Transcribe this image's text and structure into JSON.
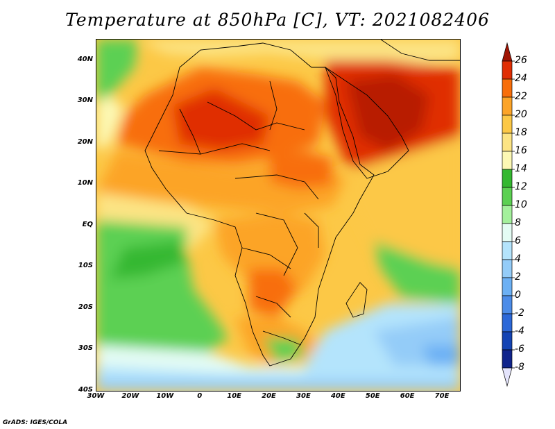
{
  "title": "Temperature at 850hPa [C], VT: 2021082406",
  "credit": "GrADS: IGES/COLA",
  "map": {
    "projection": "latlon",
    "lon_range": [
      -30,
      75
    ],
    "lat_range": [
      -40,
      45
    ],
    "lat_ticks": [
      {
        "value": 40,
        "label": "40N"
      },
      {
        "value": 30,
        "label": "30N"
      },
      {
        "value": 20,
        "label": "20N"
      },
      {
        "value": 10,
        "label": "10N"
      },
      {
        "value": 0,
        "label": "EQ"
      },
      {
        "value": -10,
        "label": "10S"
      },
      {
        "value": -20,
        "label": "20S"
      },
      {
        "value": -30,
        "label": "30S"
      },
      {
        "value": -40,
        "label": "40S"
      }
    ],
    "lon_ticks": [
      {
        "value": -30,
        "label": "30W"
      },
      {
        "value": -20,
        "label": "20W"
      },
      {
        "value": -10,
        "label": "10W"
      },
      {
        "value": 0,
        "label": "0"
      },
      {
        "value": 10,
        "label": "10E"
      },
      {
        "value": 20,
        "label": "20E"
      },
      {
        "value": 30,
        "label": "30E"
      },
      {
        "value": 40,
        "label": "40E"
      },
      {
        "value": 50,
        "label": "50E"
      },
      {
        "value": 60,
        "label": "60E"
      },
      {
        "value": 70,
        "label": "70E"
      }
    ]
  },
  "colorbar": {
    "levels": [
      "26",
      "24",
      "22",
      "20",
      "18",
      "16",
      "14",
      "12",
      "10",
      "8",
      "6",
      "4",
      "2",
      "0",
      "-2",
      "-4",
      "-6",
      "-8"
    ],
    "colors": [
      "#a01404",
      "#e02e04",
      "#f86e0a",
      "#fca428",
      "#fcc846",
      "#fce484",
      "#fcf8b4",
      "#34b830",
      "#5cd052",
      "#a4f09c",
      "#e4fcf4",
      "#b4e4fc",
      "#94ccf8",
      "#6cb0f4",
      "#4c8ce8",
      "#2c68d8",
      "#1444b4",
      "#10248c",
      "#e4e4fc"
    ]
  }
}
